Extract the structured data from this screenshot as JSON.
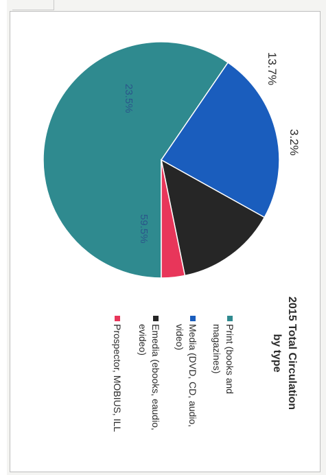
{
  "chart_data": {
    "type": "pie",
    "title": "2015 Total Circulation by type",
    "title_lines": [
      "2015 Total Circulation",
      "by type"
    ],
    "slices": [
      {
        "label": "Print (books and magazines)",
        "legend_lines": [
          "Print (books and",
          "magazines)"
        ],
        "value": 59.5,
        "value_label": "59.5%",
        "color": "#2f8a8f"
      },
      {
        "label": "Media (DVD, CD, audio, video)",
        "legend_lines": [
          "Media (DVD, CD, audio,",
          "video)"
        ],
        "value": 23.5,
        "value_label": "23.5%",
        "color": "#1a5dbd"
      },
      {
        "label": "Emedia (ebooks, eaudio, evideo)",
        "legend_lines": [
          "Emedia (ebooks, eaudio,",
          "evideo)"
        ],
        "value": 13.7,
        "value_label": "13.7%",
        "color": "#262626"
      },
      {
        "label": "Prospector, MOBIUS, ILL",
        "legend_lines": [
          "Prospector, MOBIUS, ILL"
        ],
        "value": 3.2,
        "value_label": "3.2%",
        "color": "#e8365a"
      }
    ],
    "legend_position": "right",
    "orientation": "rotated 90° clockwise"
  }
}
